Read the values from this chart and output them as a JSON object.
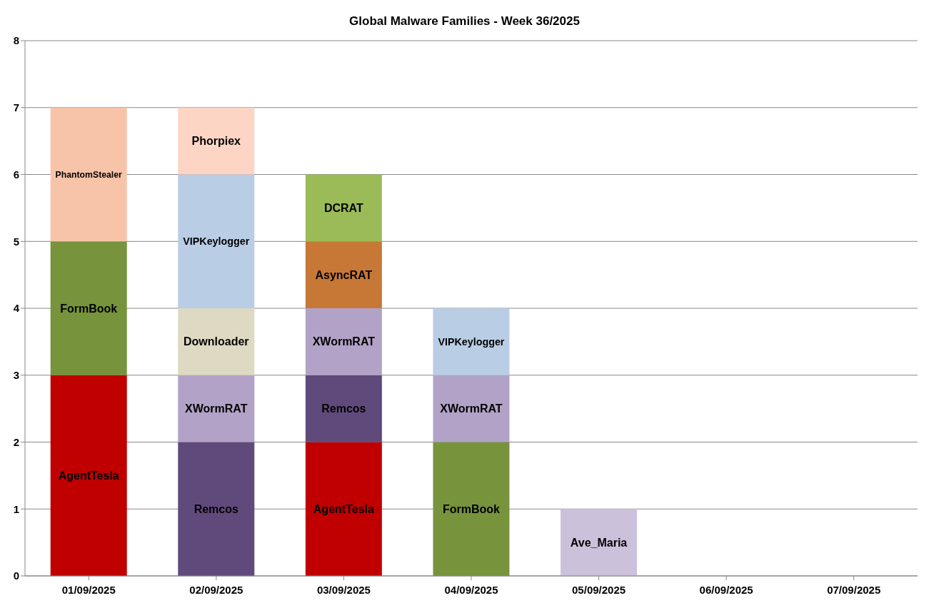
{
  "chart_data": {
    "type": "bar",
    "title": "Global Malware Families - Week 36/2025",
    "stacked": true,
    "categories": [
      "01/09/2025",
      "02/09/2025",
      "03/09/2025",
      "04/09/2025",
      "05/09/2025",
      "06/09/2025",
      "07/09/2025"
    ],
    "series": [
      {
        "name": "AgentTesla",
        "color": "#c00000",
        "values": [
          3,
          null,
          2,
          null,
          null,
          null,
          null
        ]
      },
      {
        "name": "FormBook",
        "color": "#77933c",
        "values": [
          2,
          null,
          null,
          2,
          null,
          null,
          null
        ]
      },
      {
        "name": "Remcos",
        "color": "#604a7b",
        "values": [
          null,
          2,
          1,
          null,
          null,
          null,
          null
        ]
      },
      {
        "name": "XWormRAT",
        "color": "#b3a2c7",
        "values": [
          null,
          1,
          1,
          1,
          null,
          null,
          null
        ]
      },
      {
        "name": "Downloader",
        "color": "#ddd9c3",
        "values": [
          null,
          1,
          null,
          null,
          null,
          null,
          null
        ]
      },
      {
        "name": "VIPKeylogger",
        "color": "#b9cde5",
        "values": [
          null,
          2,
          null,
          1,
          null,
          null,
          null
        ]
      },
      {
        "name": "Phorpiex",
        "color": "#fcd5c5",
        "values": [
          null,
          1,
          null,
          null,
          null,
          null,
          null
        ]
      },
      {
        "name": "AsyncRAT",
        "color": "#c77837",
        "values": [
          null,
          null,
          1,
          null,
          null,
          null,
          null
        ]
      },
      {
        "name": "DCRAT",
        "color": "#9bbb59",
        "values": [
          null,
          null,
          1,
          null,
          null,
          null,
          null
        ]
      },
      {
        "name": "PhantomStealer",
        "color": "#f8c4a9",
        "values": [
          2,
          null,
          null,
          null,
          null,
          null,
          null
        ]
      },
      {
        "name": "Ave_Maria",
        "color": "#ccc1da",
        "values": [
          null,
          null,
          null,
          null,
          1,
          null,
          null
        ]
      }
    ],
    "ylim": [
      0,
      8
    ],
    "yticks": [
      0,
      1,
      2,
      3,
      4,
      5,
      6,
      7,
      8
    ],
    "grid": "y",
    "legend": false
  }
}
